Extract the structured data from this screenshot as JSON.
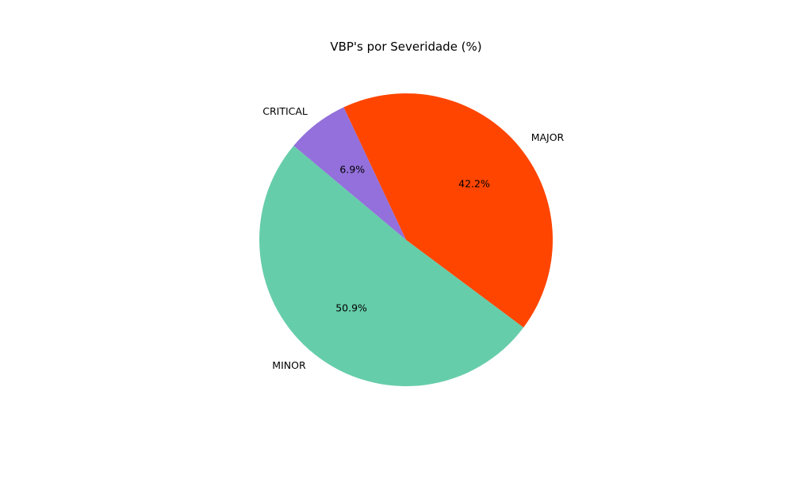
{
  "chart_data": {
    "type": "pie",
    "title": "VBP's por Severidade (%)",
    "slices": [
      {
        "label": "MINOR",
        "value": 50.9,
        "pct_label": "50.9%",
        "color": "#66cdaa"
      },
      {
        "label": "MAJOR",
        "value": 42.2,
        "pct_label": "42.2%",
        "color": "#ff4500"
      },
      {
        "label": "CRITICAL",
        "value": 6.9,
        "pct_label": "6.9%",
        "color": "#9370db"
      }
    ],
    "start_angle_deg": 140,
    "direction": "counterclockwise",
    "legend": "none"
  }
}
